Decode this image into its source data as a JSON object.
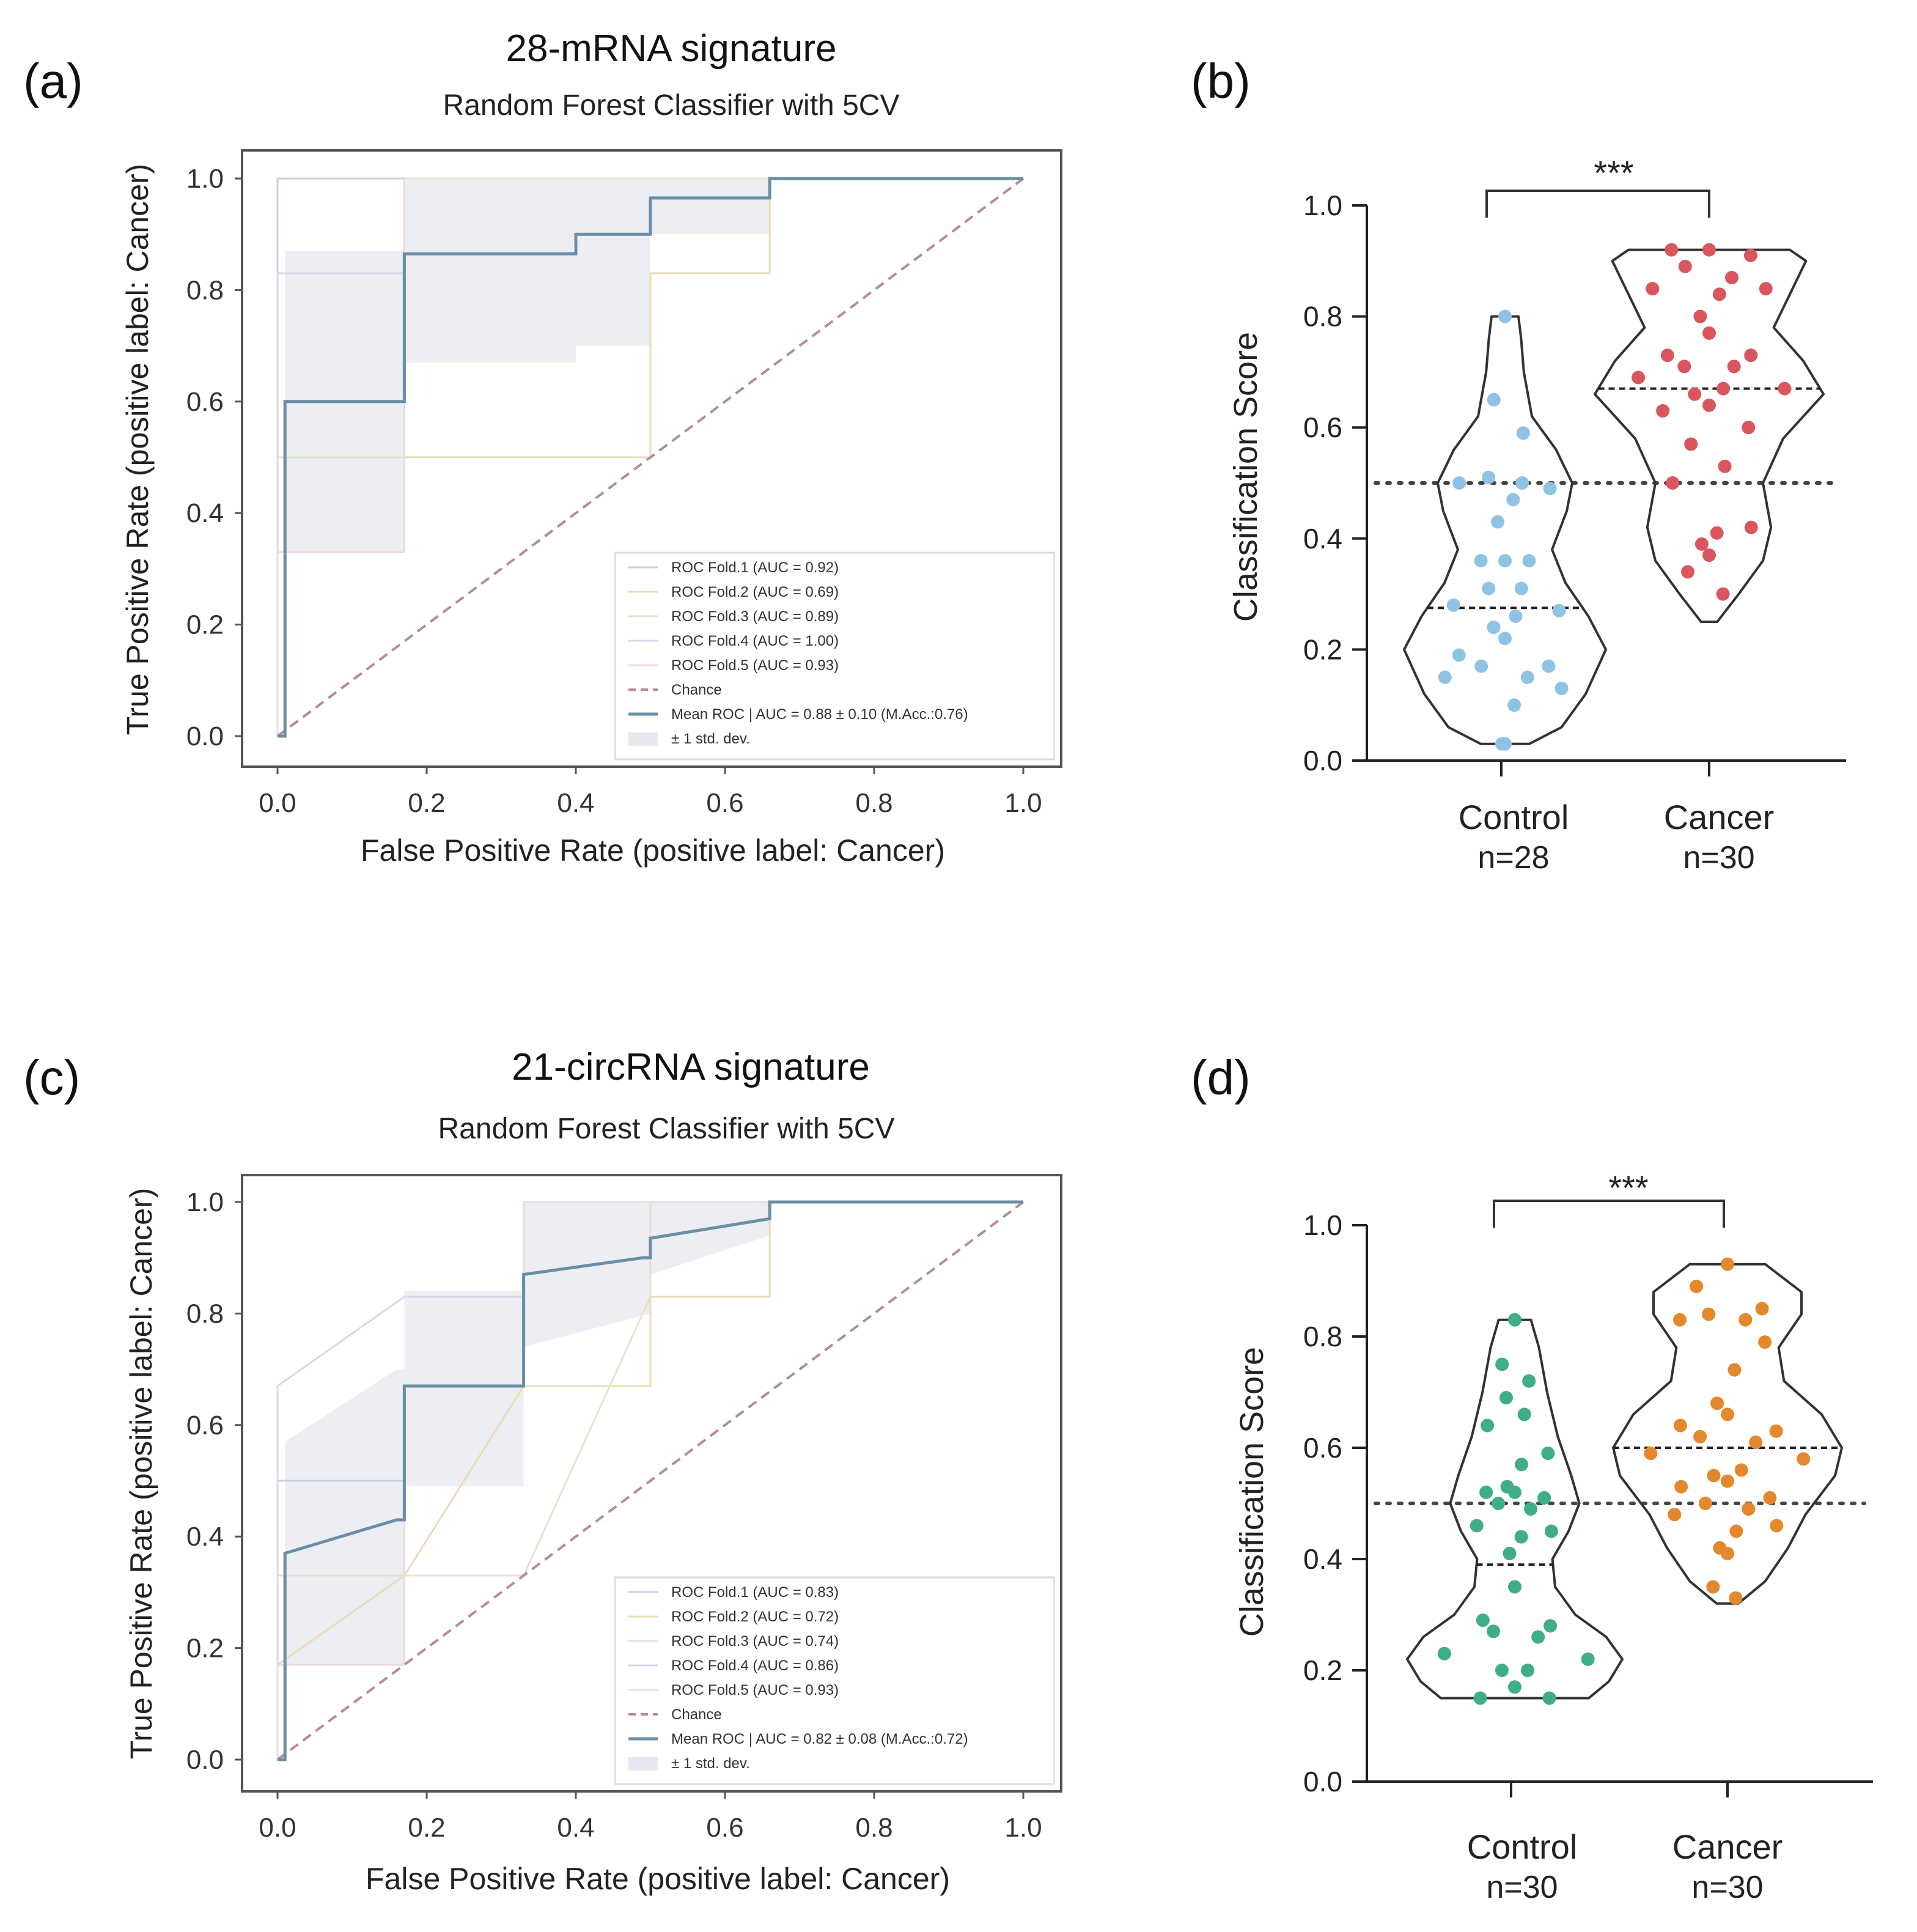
{
  "figure": {
    "panel_labels": [
      "(a)",
      "(b)",
      "(c)",
      "(d)"
    ]
  },
  "colors": {
    "mean_roc": "#6a8ea6",
    "chance": "#b58a9a",
    "std_band": "#e6e8f0",
    "fold_line": "#e4dcc2",
    "axis": "#222222",
    "control_blue": "#8ec3e3",
    "cancer_red": "#d9565e",
    "control_green": "#3fae84",
    "cancer_orange": "#e3882c"
  },
  "chart_data": [
    {
      "id": "a",
      "type": "line",
      "title": "28-mRNA signature",
      "subtitle": "Random Forest Classifier with 5CV",
      "xlabel": "False Positive Rate (positive label:  Cancer)",
      "ylabel": "True Positive Rate (positive label:  Cancer)",
      "xlim": [
        0,
        1
      ],
      "ylim": [
        0,
        1
      ],
      "ticks": [
        "0.0",
        "0.2",
        "0.4",
        "0.6",
        "0.8",
        "1.0"
      ],
      "tick_values": [
        0,
        0.2,
        0.4,
        0.6,
        0.8,
        1.0
      ],
      "legend_position": "bottom-right",
      "legend": [
        "ROC Fold.1 (AUC = 0.92)",
        "ROC Fold.2 (AUC = 0.69)",
        "ROC Fold.3 (AUC = 0.89)",
        "ROC Fold.4 (AUC = 1.00)",
        "ROC Fold.5 (AUC = 0.93)",
        "Chance",
        " Mean ROC | AUC = 0.88 ± 0.10 (M.Acc.:0.76)",
        "± 1 std. dev."
      ],
      "mean_roc": {
        "x": [
          0,
          0.01,
          0.01,
          0.17,
          0.17,
          0.4,
          0.4,
          0.5,
          0.5,
          0.66,
          0.66,
          1.0
        ],
        "y": [
          0,
          0,
          0.6,
          0.6,
          0.865,
          0.865,
          0.9,
          0.9,
          0.965,
          0.965,
          1.0,
          1.0
        ]
      },
      "std_upper": {
        "x": [
          0,
          0.01,
          0.01,
          0.17,
          0.17,
          0.66,
          0.66,
          1.0
        ],
        "y": [
          0,
          0,
          0.87,
          0.87,
          1.0,
          1.0,
          1.0,
          1.0
        ]
      },
      "std_lower": {
        "x": [
          0,
          0.01,
          0.01,
          0.17,
          0.17,
          0.4,
          0.4,
          0.5,
          0.5,
          0.66,
          0.66,
          1.0
        ],
        "y": [
          0,
          0,
          0.33,
          0.33,
          0.67,
          0.67,
          0.7,
          0.7,
          0.9,
          0.9,
          1.0,
          1.0
        ]
      },
      "folds": [
        {
          "x": [
            0,
            0,
            1.0
          ],
          "y": [
            0,
            1.0,
            1.0
          ]
        },
        {
          "x": [
            0,
            0,
            0.5,
            0.5,
            0.66,
            0.66,
            1.0
          ],
          "y": [
            0,
            0.5,
            0.5,
            0.83,
            0.83,
            1.0,
            1.0
          ]
        },
        {
          "x": [
            0,
            0,
            0.17,
            0.17,
            1.0
          ],
          "y": [
            0,
            0.5,
            0.5,
            1.0,
            1.0
          ]
        },
        {
          "x": [
            0,
            0,
            0.17,
            0.17,
            1.0
          ],
          "y": [
            0,
            0.83,
            0.83,
            1.0,
            1.0
          ]
        },
        {
          "x": [
            0,
            0,
            0.17,
            0.17,
            1.0
          ],
          "y": [
            0,
            0.33,
            0.33,
            1.0,
            1.0
          ]
        }
      ]
    },
    {
      "id": "b",
      "type": "scatter",
      "title": "",
      "ylabel": "Classification Score",
      "ylim": [
        0,
        1
      ],
      "ticks": [
        "0.0",
        "0.2",
        "0.4",
        "0.6",
        "0.8",
        "1.0"
      ],
      "tick_values": [
        0,
        0.2,
        0.4,
        0.6,
        0.8,
        1.0
      ],
      "threshold": 0.5,
      "significance": "***",
      "groups": [
        {
          "name": "Control",
          "n_label": "n=28",
          "color": "#8ec3e3",
          "median": 0.275,
          "violin": [
            [
              0.03,
              0.18
            ],
            [
              0.06,
              0.42
            ],
            [
              0.12,
              0.6
            ],
            [
              0.2,
              0.75
            ],
            [
              0.26,
              0.62
            ],
            [
              0.32,
              0.45
            ],
            [
              0.38,
              0.35
            ],
            [
              0.45,
              0.46
            ],
            [
              0.5,
              0.5
            ],
            [
              0.56,
              0.38
            ],
            [
              0.62,
              0.2
            ],
            [
              0.7,
              0.14
            ],
            [
              0.76,
              0.12
            ],
            [
              0.8,
              0.1
            ]
          ],
          "points": [
            0.8,
            0.65,
            0.59,
            0.51,
            0.5,
            0.5,
            0.49,
            0.47,
            0.43,
            0.36,
            0.36,
            0.36,
            0.31,
            0.31,
            0.28,
            0.27,
            0.26,
            0.24,
            0.22,
            0.19,
            0.17,
            0.17,
            0.15,
            0.15,
            0.13,
            0.1,
            0.03,
            0.03
          ]
        },
        {
          "name": "Cancer",
          "n_label": "n=30",
          "color": "#d9565e",
          "median": 0.67,
          "violin": [
            [
              0.25,
              0.06
            ],
            [
              0.3,
              0.22
            ],
            [
              0.36,
              0.4
            ],
            [
              0.42,
              0.46
            ],
            [
              0.5,
              0.4
            ],
            [
              0.58,
              0.55
            ],
            [
              0.66,
              0.85
            ],
            [
              0.72,
              0.7
            ],
            [
              0.78,
              0.48
            ],
            [
              0.85,
              0.62
            ],
            [
              0.9,
              0.72
            ],
            [
              0.92,
              0.6
            ]
          ],
          "points": [
            0.92,
            0.92,
            0.91,
            0.89,
            0.87,
            0.85,
            0.85,
            0.84,
            0.8,
            0.77,
            0.73,
            0.73,
            0.71,
            0.71,
            0.69,
            0.67,
            0.67,
            0.66,
            0.64,
            0.63,
            0.6,
            0.57,
            0.53,
            0.5,
            0.42,
            0.41,
            0.39,
            0.37,
            0.34,
            0.3
          ]
        }
      ]
    },
    {
      "id": "c",
      "type": "line",
      "title": "21-circRNA signature",
      "subtitle": "Random Forest Classifier with 5CV",
      "xlabel": "False Positive Rate (positive label:  Cancer)",
      "ylabel": "True Positive Rate (positive label:  Cancer)",
      "xlim": [
        0,
        1
      ],
      "ylim": [
        0,
        1
      ],
      "ticks": [
        "0.0",
        "0.2",
        "0.4",
        "0.6",
        "0.8",
        "1.0"
      ],
      "tick_values": [
        0,
        0.2,
        0.4,
        0.6,
        0.8,
        1.0
      ],
      "legend_position": "bottom-right",
      "legend": [
        "ROC Fold.1 (AUC = 0.83)",
        "ROC Fold.2 (AUC = 0.72)",
        "ROC Fold.3 (AUC = 0.74)",
        "ROC Fold.4 (AUC = 0.86)",
        "ROC Fold.5 (AUC = 0.93)",
        "Chance",
        " Mean ROC | AUC = 0.82 ± 0.08 (M.Acc.:0.72)",
        "± 1 std. dev."
      ],
      "mean_roc": {
        "x": [
          0,
          0.01,
          0.01,
          0.16,
          0.17,
          0.17,
          0.32,
          0.33,
          0.33,
          0.49,
          0.5,
          0.5,
          0.66,
          0.66,
          1.0
        ],
        "y": [
          0,
          0,
          0.37,
          0.43,
          0.43,
          0.67,
          0.67,
          0.67,
          0.87,
          0.9,
          0.9,
          0.935,
          0.97,
          1.0,
          1.0
        ]
      },
      "std_upper": {
        "x": [
          0,
          0.01,
          0.01,
          0.16,
          0.17,
          0.17,
          0.33,
          0.33,
          0.66,
          0.66,
          1.0
        ],
        "y": [
          0,
          0,
          0.57,
          0.7,
          0.7,
          0.84,
          0.84,
          1.0,
          1.0,
          1.0,
          1.0
        ]
      },
      "std_lower": {
        "x": [
          0,
          0.01,
          0.01,
          0.16,
          0.17,
          0.17,
          0.33,
          0.33,
          0.5,
          0.5,
          0.66,
          0.66,
          1.0
        ],
        "y": [
          0,
          0,
          0.17,
          0.17,
          0.17,
          0.49,
          0.49,
          0.74,
          0.8,
          0.87,
          0.94,
          1.0,
          1.0
        ]
      },
      "folds": [
        {
          "x": [
            0,
            0,
            0.17,
            0.17,
            0.33,
            0.33,
            1.0
          ],
          "y": [
            0,
            0.5,
            0.5,
            0.67,
            0.67,
            1.0,
            1.0
          ]
        },
        {
          "x": [
            0,
            0,
            0.17,
            0.33,
            0.5,
            0.5,
            0.66,
            0.66,
            1.0
          ],
          "y": [
            0,
            0.17,
            0.33,
            0.67,
            0.67,
            0.83,
            0.83,
            1.0,
            1.0
          ]
        },
        {
          "x": [
            0,
            0,
            0.17,
            0.33,
            0.5,
            0.5,
            1.0
          ],
          "y": [
            0,
            0.33,
            0.33,
            0.33,
            0.83,
            1.0,
            1.0
          ]
        },
        {
          "x": [
            0,
            0,
            0.17,
            0.17,
            0.33,
            0.33,
            1.0
          ],
          "y": [
            0,
            0.67,
            0.83,
            0.83,
            0.83,
            1.0,
            1.0
          ]
        },
        {
          "x": [
            0,
            0,
            0.17,
            0.17,
            0.33,
            0.33,
            1.0
          ],
          "y": [
            0,
            0.17,
            0.17,
            0.67,
            0.67,
            1.0,
            1.0
          ]
        }
      ]
    },
    {
      "id": "d",
      "type": "scatter",
      "title": "",
      "ylabel": "Classification Score",
      "ylim": [
        0,
        1
      ],
      "ticks": [
        "0.0",
        "0.2",
        "0.4",
        "0.6",
        "0.8",
        "1.0"
      ],
      "tick_values": [
        0,
        0.2,
        0.4,
        0.6,
        0.8,
        1.0
      ],
      "threshold": 0.5,
      "significance": "***",
      "groups": [
        {
          "name": "Control",
          "n_label": "n=30",
          "color": "#3fae84",
          "median": 0.39,
          "violin": [
            [
              0.15,
              0.55
            ],
            [
              0.18,
              0.7
            ],
            [
              0.22,
              0.8
            ],
            [
              0.26,
              0.68
            ],
            [
              0.3,
              0.45
            ],
            [
              0.35,
              0.3
            ],
            [
              0.4,
              0.28
            ],
            [
              0.45,
              0.4
            ],
            [
              0.5,
              0.48
            ],
            [
              0.55,
              0.42
            ],
            [
              0.62,
              0.32
            ],
            [
              0.7,
              0.24
            ],
            [
              0.78,
              0.18
            ],
            [
              0.83,
              0.12
            ]
          ],
          "points": [
            0.83,
            0.75,
            0.72,
            0.69,
            0.66,
            0.64,
            0.59,
            0.57,
            0.53,
            0.52,
            0.52,
            0.51,
            0.5,
            0.49,
            0.46,
            0.45,
            0.44,
            0.41,
            0.35,
            0.29,
            0.28,
            0.27,
            0.26,
            0.23,
            0.22,
            0.2,
            0.2,
            0.17,
            0.15,
            0.15
          ]
        },
        {
          "name": "Cancer",
          "n_label": "n=30",
          "color": "#e3882c",
          "median": 0.6,
          "violin": [
            [
              0.32,
              0.08
            ],
            [
              0.36,
              0.28
            ],
            [
              0.42,
              0.45
            ],
            [
              0.48,
              0.58
            ],
            [
              0.55,
              0.8
            ],
            [
              0.6,
              0.85
            ],
            [
              0.66,
              0.7
            ],
            [
              0.72,
              0.42
            ],
            [
              0.78,
              0.38
            ],
            [
              0.84,
              0.55
            ],
            [
              0.88,
              0.55
            ],
            [
              0.93,
              0.28
            ]
          ],
          "points": [
            0.93,
            0.89,
            0.85,
            0.84,
            0.83,
            0.83,
            0.79,
            0.74,
            0.68,
            0.66,
            0.64,
            0.63,
            0.62,
            0.61,
            0.59,
            0.58,
            0.56,
            0.55,
            0.54,
            0.53,
            0.51,
            0.5,
            0.49,
            0.48,
            0.46,
            0.45,
            0.42,
            0.41,
            0.35,
            0.33
          ]
        }
      ]
    }
  ]
}
